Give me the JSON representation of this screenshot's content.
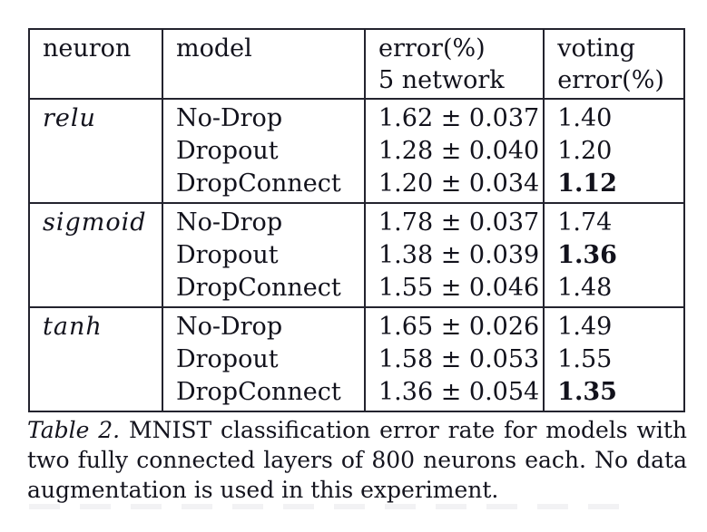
{
  "colors": {
    "background": "#ffffff",
    "text": "#12121c",
    "border": "#23232e"
  },
  "table": {
    "headers": [
      {
        "lines": [
          "neuron",
          ""
        ]
      },
      {
        "lines": [
          "model",
          ""
        ]
      },
      {
        "lines": [
          "error(%)",
          "5 network"
        ]
      },
      {
        "lines": [
          "voting",
          "error(%)"
        ]
      }
    ],
    "groups": [
      {
        "neuron": "relu",
        "rows": [
          {
            "model": "No-Drop",
            "error": "1.62 ± 0.037",
            "voting": "1.40"
          },
          {
            "model": "Dropout",
            "error": "1.28 ± 0.040",
            "voting": "1.20"
          },
          {
            "model": "DropConnect",
            "error": "1.20 ± 0.034",
            "voting": "1.12"
          }
        ]
      },
      {
        "neuron": "sigmoid",
        "rows": [
          {
            "model": "No-Drop",
            "error": "1.78 ± 0.037",
            "voting": "1.74"
          },
          {
            "model": "Dropout",
            "error": "1.38 ± 0.039",
            "voting": "1.36"
          },
          {
            "model": "DropConnect",
            "error": "1.55 ± 0.046",
            "voting": "1.48"
          }
        ]
      },
      {
        "neuron": "tanh",
        "rows": [
          {
            "model": "No-Drop",
            "error": "1.65 ± 0.026",
            "voting": "1.49"
          },
          {
            "model": "Dropout",
            "error": "1.58 ± 0.053",
            "voting": "1.55"
          },
          {
            "model": "DropConnect",
            "error": "1.36 ± 0.054",
            "voting": "1.35"
          }
        ]
      }
    ]
  },
  "caption": {
    "label": "Table 2.",
    "line1_rest": "MNIST classification error rate for models with",
    "line2": "two fully connected layers of 800 neurons each.  No data",
    "line3": "augmentation is used in this experiment."
  }
}
